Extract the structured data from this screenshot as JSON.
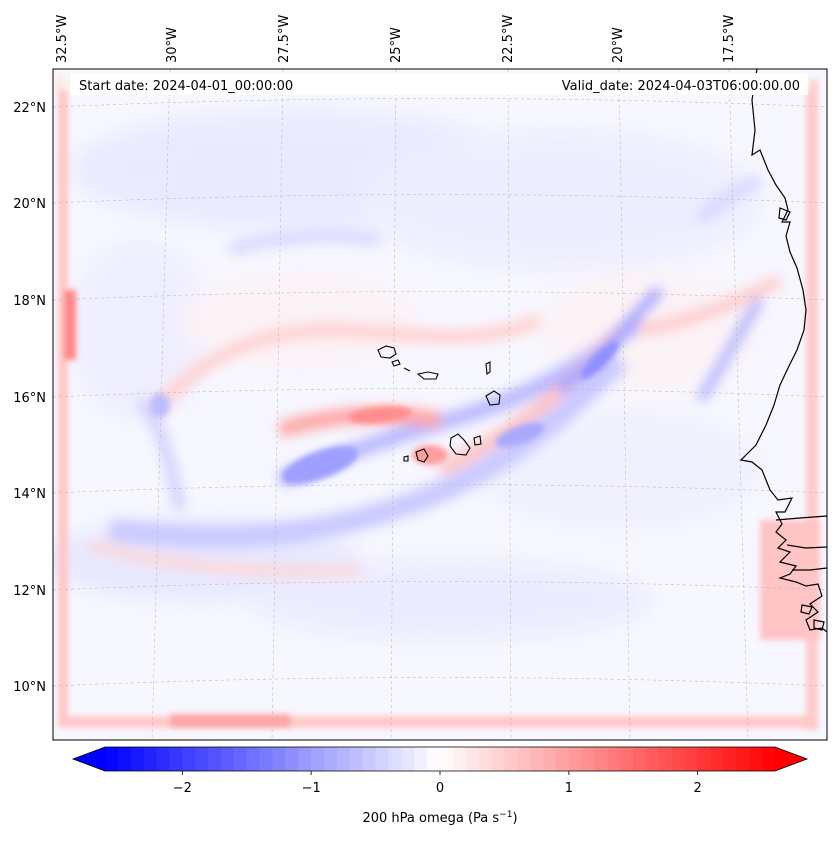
{
  "map": {
    "start_label": "Start date: 2024-04-01_00:00:00",
    "valid_label": "Valid_date: 2024-04-03T06:00:00.00",
    "lon_labels": [
      "32.5°W",
      "30°W",
      "27.5°W",
      "25°W",
      "22.5°W",
      "20°W",
      "17.5°W"
    ],
    "lat_labels": [
      "22°N",
      "20°N",
      "18°N",
      "16°N",
      "14°N",
      "12°N",
      "10°N"
    ],
    "field": "200 hPa omega",
    "coastline_color": "#000000",
    "gridline_color": "#bbbbbb"
  },
  "colorbar": {
    "label": "200 hPa omega (Pa s",
    "label_exp": "−1",
    "label_close": ")",
    "ticks": [
      "−2",
      "−1",
      "0",
      "1",
      "2"
    ],
    "tick_values": [
      -2,
      -1,
      0,
      1,
      2
    ],
    "range": [
      -2.6,
      2.6
    ],
    "colormap": "bwr",
    "color_min": "#0000ff",
    "color_mid": "#ffffff",
    "color_max": "#ff0000",
    "extend": "both"
  }
}
